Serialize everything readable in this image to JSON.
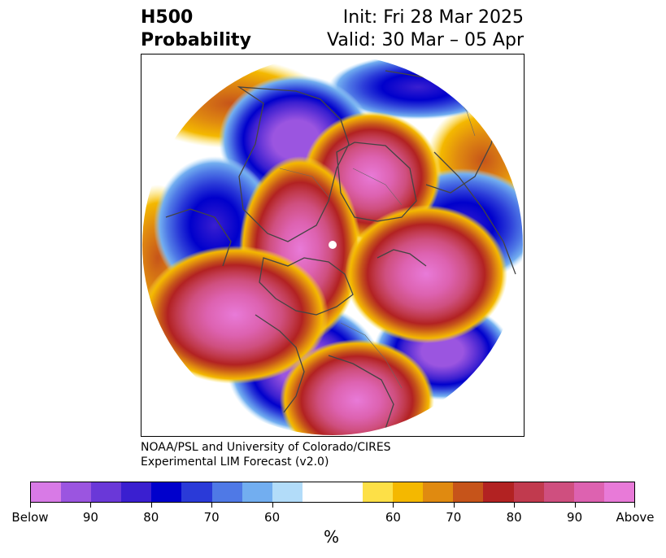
{
  "title": {
    "left_line1": "H500",
    "left_line2": "Probability",
    "right_line1": "Init: Fri 28 Mar 2025",
    "right_line2": "Valid: 30 Mar – 05 Apr"
  },
  "credit": {
    "line1": "NOAA/PSL and University of Colorado/CIRES",
    "line2": "Experimental LIM Forecast (v2.0)"
  },
  "colorbar": {
    "unit": "%",
    "swatches": [
      "#d87ae6",
      "#9b55e0",
      "#6a38d8",
      "#3a1fd0",
      "#0000cc",
      "#2a3ad8",
      "#4f79e6",
      "#72aef0",
      "#b2dcf9",
      "#ffffff",
      "#ffffff",
      "#fde047",
      "#f4b800",
      "#e08a10",
      "#c6541a",
      "#b22222",
      "#c13a4e",
      "#cf4f7f",
      "#dd62b0",
      "#e87ad8"
    ],
    "tick_labels": [
      "Below",
      "90",
      "80",
      "70",
      "60",
      "60",
      "70",
      "80",
      "90",
      "Above"
    ]
  },
  "map": {
    "projection": "north-polar-stereographic",
    "anomalies": [
      {
        "region": "Alaska / NW Canada",
        "sign": "below",
        "probability": 90
      },
      {
        "region": "Hudson Bay / Greenland",
        "sign": "above",
        "probability": 90
      },
      {
        "region": "North Atlantic",
        "sign": "below",
        "probability": 80
      },
      {
        "region": "Scandinavia / Norwegian Sea",
        "sign": "above",
        "probability": 90
      },
      {
        "region": "Western Russia",
        "sign": "below",
        "probability": 80
      },
      {
        "region": "Eastern Europe",
        "sign": "above",
        "probability": 90
      },
      {
        "region": "Central Asia",
        "sign": "below",
        "probability": 90
      },
      {
        "region": "East Siberia / Arctic",
        "sign": "above",
        "probability": 90
      },
      {
        "region": "North Pacific",
        "sign": "above",
        "probability": 90
      },
      {
        "region": "West Pacific",
        "sign": "below",
        "probability": 80
      }
    ]
  }
}
